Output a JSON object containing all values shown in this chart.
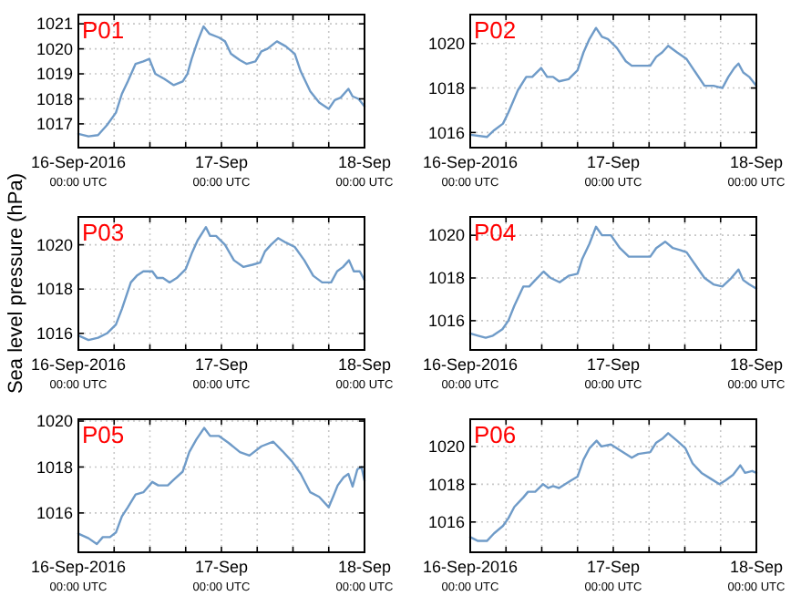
{
  "chart_data": [
    {
      "type": "line",
      "title": "P01",
      "xlim": [
        "2016-09-16T00:00",
        "2016-09-18T00:00"
      ],
      "ylim": [
        1016.05,
        1021.37
      ],
      "yticks": [
        1017,
        1018,
        1019,
        1020,
        1021
      ],
      "grid": true,
      "xticks": [
        {
          "value": "2016-09-16T00:00",
          "label": "16-Sep-2016\n00:00 UTC"
        },
        {
          "value": "2016-09-16T06:00",
          "label": null
        },
        {
          "value": "2016-09-16T12:00",
          "label": null
        },
        {
          "value": "2016-09-16T18:00",
          "label": null
        },
        {
          "value": "2016-09-17T00:00",
          "label": "17-Sep\n00:00 UTC"
        },
        {
          "value": "2016-09-17T06:00",
          "label": null
        },
        {
          "value": "2016-09-17T12:00",
          "label": null
        },
        {
          "value": "2016-09-17T18:00",
          "label": null
        },
        {
          "value": "2016-09-18T00:00",
          "label": "18-Sep\n00:00 UTC"
        }
      ],
      "series": [
        {
          "color": "#6f9bc8",
          "x": [
            "2016-09-16T00:00",
            "2016-09-16T01:42",
            "2016-09-16T03:18",
            "2016-09-16T04:48",
            "2016-09-16T06:18",
            "2016-09-16T07:18",
            "2016-09-16T08:18",
            "2016-09-16T09:36",
            "2016-09-16T10:54",
            "2016-09-16T11:54",
            "2016-09-16T12:54",
            "2016-09-16T14:24",
            "2016-09-16T16:00",
            "2016-09-16T17:30",
            "2016-09-16T18:18",
            "2016-09-16T19:00",
            "2016-09-16T20:00",
            "2016-09-16T21:00",
            "2016-09-16T22:00",
            "2016-09-16T23:36",
            "2016-09-17T00:36",
            "2016-09-17T01:36",
            "2016-09-17T03:06",
            "2016-09-17T04:12",
            "2016-09-17T05:42",
            "2016-09-17T06:42",
            "2016-09-17T07:42",
            "2016-09-17T09:18",
            "2016-09-17T10:48",
            "2016-09-17T12:18",
            "2016-09-17T13:18",
            "2016-09-17T14:54",
            "2016-09-17T16:24",
            "2016-09-17T18:00",
            "2016-09-17T19:00",
            "2016-09-17T20:00",
            "2016-09-17T21:18",
            "2016-09-17T22:00",
            "2016-09-17T23:00",
            "2016-09-18T00:00"
          ],
          "values": [
            1016.6,
            1016.5,
            1016.55,
            1016.95,
            1017.45,
            1018.2,
            1018.7,
            1019.4,
            1019.5,
            1019.6,
            1019,
            1018.8,
            1018.55,
            1018.7,
            1019,
            1019.6,
            1020.3,
            1020.9,
            1020.6,
            1020.45,
            1020.3,
            1019.8,
            1019.55,
            1019.4,
            1019.5,
            1019.9,
            1020,
            1020.3,
            1020.1,
            1019.8,
            1019.1,
            1018.3,
            1017.85,
            1017.6,
            1017.95,
            1018.05,
            1018.4,
            1018.1,
            1018,
            1017.7
          ]
        }
      ]
    },
    {
      "type": "line",
      "title": "P02",
      "xlim": [
        "2016-09-16T00:00",
        "2016-09-18T00:00"
      ],
      "ylim": [
        1015.32,
        1021.3
      ],
      "yticks": [
        1016,
        1018,
        1020
      ],
      "grid": true,
      "xticks": [
        {
          "value": "2016-09-16T00:00",
          "label": "16-Sep-2016\n00:00 UTC"
        },
        {
          "value": "2016-09-16T06:00",
          "label": null
        },
        {
          "value": "2016-09-16T12:00",
          "label": null
        },
        {
          "value": "2016-09-16T18:00",
          "label": null
        },
        {
          "value": "2016-09-17T00:00",
          "label": "17-Sep\n00:00 UTC"
        },
        {
          "value": "2016-09-17T06:00",
          "label": null
        },
        {
          "value": "2016-09-17T12:00",
          "label": null
        },
        {
          "value": "2016-09-17T18:00",
          "label": null
        },
        {
          "value": "2016-09-18T00:00",
          "label": "18-Sep\n00:00 UTC"
        }
      ],
      "series": [
        {
          "color": "#6f9bc8",
          "x": [
            "2016-09-16T00:00",
            "2016-09-16T02:48",
            "2016-09-16T04:00",
            "2016-09-16T05:30",
            "2016-09-16T06:24",
            "2016-09-16T08:00",
            "2016-09-16T09:24",
            "2016-09-16T10:24",
            "2016-09-16T11:54",
            "2016-09-16T12:54",
            "2016-09-16T13:54",
            "2016-09-16T14:54",
            "2016-09-16T16:30",
            "2016-09-16T18:00",
            "2016-09-16T19:00",
            "2016-09-16T20:00",
            "2016-09-16T21:06",
            "2016-09-16T22:06",
            "2016-09-16T23:06",
            "2016-09-17T00:36",
            "2016-09-17T02:06",
            "2016-09-17T03:06",
            "2016-09-17T04:36",
            "2016-09-17T06:12",
            "2016-09-17T07:12",
            "2016-09-17T08:12",
            "2016-09-17T09:12",
            "2016-09-17T10:42",
            "2016-09-17T12:18",
            "2016-09-17T13:48",
            "2016-09-17T15:18",
            "2016-09-17T16:48",
            "2016-09-17T18:18",
            "2016-09-17T19:18",
            "2016-09-17T20:18",
            "2016-09-17T21:00",
            "2016-09-17T21:48",
            "2016-09-17T22:48",
            "2016-09-18T00:00"
          ],
          "values": [
            1015.9,
            1015.8,
            1016.1,
            1016.4,
            1016.9,
            1017.9,
            1018.5,
            1018.5,
            1018.9,
            1018.5,
            1018.5,
            1018.3,
            1018.4,
            1018.8,
            1019.6,
            1020.2,
            1020.7,
            1020.3,
            1020.2,
            1019.8,
            1019.2,
            1019,
            1019,
            1019,
            1019.4,
            1019.6,
            1019.9,
            1019.6,
            1019.3,
            1018.7,
            1018.1,
            1018.1,
            1018,
            1018.5,
            1018.9,
            1019.1,
            1018.7,
            1018.5,
            1018.1
          ]
        }
      ]
    },
    {
      "type": "line",
      "title": "P03",
      "ylabel": "Sea level pressure (hPa)",
      "xlim": [
        "2016-09-16T00:00",
        "2016-09-18T00:00"
      ],
      "ylim": [
        1015.25,
        1021.26
      ],
      "yticks": [
        1016,
        1018,
        1020
      ],
      "grid": true,
      "xticks": [
        {
          "value": "2016-09-16T00:00",
          "label": "16-Sep-2016\n00:00 UTC"
        },
        {
          "value": "2016-09-16T06:00",
          "label": null
        },
        {
          "value": "2016-09-16T12:00",
          "label": null
        },
        {
          "value": "2016-09-16T18:00",
          "label": null
        },
        {
          "value": "2016-09-17T00:00",
          "label": "17-Sep\n00:00 UTC"
        },
        {
          "value": "2016-09-17T06:00",
          "label": null
        },
        {
          "value": "2016-09-17T12:00",
          "label": null
        },
        {
          "value": "2016-09-17T18:00",
          "label": null
        },
        {
          "value": "2016-09-18T00:00",
          "label": "18-Sep\n00:00 UTC"
        }
      ],
      "series": [
        {
          "color": "#6f9bc8",
          "x": [
            "2016-09-16T00:00",
            "2016-09-16T01:42",
            "2016-09-16T03:18",
            "2016-09-16T04:48",
            "2016-09-16T06:18",
            "2016-09-16T07:18",
            "2016-09-16T08:48",
            "2016-09-16T09:48",
            "2016-09-16T10:54",
            "2016-09-16T12:24",
            "2016-09-16T13:12",
            "2016-09-16T14:12",
            "2016-09-16T15:18",
            "2016-09-16T16:30",
            "2016-09-16T18:00",
            "2016-09-16T19:00",
            "2016-09-16T20:00",
            "2016-09-16T21:24",
            "2016-09-16T22:06",
            "2016-09-16T23:06",
            "2016-09-17T00:36",
            "2016-09-17T02:06",
            "2016-09-17T03:42",
            "2016-09-17T05:12",
            "2016-09-17T06:30",
            "2016-09-17T07:18",
            "2016-09-17T08:18",
            "2016-09-17T09:30",
            "2016-09-17T10:48",
            "2016-09-17T12:18",
            "2016-09-17T13:54",
            "2016-09-17T15:24",
            "2016-09-17T16:54",
            "2016-09-17T18:24",
            "2016-09-17T19:24",
            "2016-09-17T20:24",
            "2016-09-17T21:24",
            "2016-09-17T22:12",
            "2016-09-17T23:12",
            "2016-09-18T00:00"
          ],
          "values": [
            1015.9,
            1015.7,
            1015.8,
            1016,
            1016.4,
            1017.1,
            1018.3,
            1018.6,
            1018.8,
            1018.8,
            1018.5,
            1018.5,
            1018.3,
            1018.5,
            1018.9,
            1019.6,
            1020.2,
            1020.8,
            1020.4,
            1020.4,
            1020,
            1019.3,
            1019,
            1019.1,
            1019.2,
            1019.7,
            1020,
            1020.3,
            1020.1,
            1019.9,
            1019.3,
            1018.6,
            1018.3,
            1018.3,
            1018.8,
            1019,
            1019.3,
            1018.8,
            1018.8,
            1018.4
          ]
        }
      ]
    },
    {
      "type": "line",
      "title": "P04",
      "xlim": [
        "2016-09-16T00:00",
        "2016-09-18T00:00"
      ],
      "ylim": [
        1014.63,
        1020.86
      ],
      "yticks": [
        1016,
        1018,
        1020
      ],
      "grid": true,
      "xticks": [
        {
          "value": "2016-09-16T00:00",
          "label": "16-Sep-2016\n00:00 UTC"
        },
        {
          "value": "2016-09-16T06:00",
          "label": null
        },
        {
          "value": "2016-09-16T12:00",
          "label": null
        },
        {
          "value": "2016-09-16T18:00",
          "label": null
        },
        {
          "value": "2016-09-17T00:00",
          "label": "17-Sep\n00:00 UTC"
        },
        {
          "value": "2016-09-17T06:00",
          "label": null
        },
        {
          "value": "2016-09-17T12:00",
          "label": null
        },
        {
          "value": "2016-09-17T18:00",
          "label": null
        },
        {
          "value": "2016-09-18T00:00",
          "label": "18-Sep\n00:00 UTC"
        }
      ],
      "series": [
        {
          "color": "#6f9bc8",
          "x": [
            "2016-09-16T00:00",
            "2016-09-16T01:18",
            "2016-09-16T02:36",
            "2016-09-16T03:48",
            "2016-09-16T05:24",
            "2016-09-16T06:24",
            "2016-09-16T07:24",
            "2016-09-16T08:54",
            "2016-09-16T09:54",
            "2016-09-16T10:54",
            "2016-09-16T12:18",
            "2016-09-16T13:30",
            "2016-09-16T15:00",
            "2016-09-16T16:30",
            "2016-09-16T18:00",
            "2016-09-16T18:48",
            "2016-09-16T20:00",
            "2016-09-16T21:06",
            "2016-09-16T22:06",
            "2016-09-16T23:36",
            "2016-09-17T01:06",
            "2016-09-17T02:36",
            "2016-09-17T04:12",
            "2016-09-17T06:12",
            "2016-09-17T07:12",
            "2016-09-17T08:42",
            "2016-09-17T10:00",
            "2016-09-17T11:18",
            "2016-09-17T12:18",
            "2016-09-17T13:48",
            "2016-09-17T15:18",
            "2016-09-17T16:48",
            "2016-09-17T18:18",
            "2016-09-17T19:48",
            "2016-09-17T21:00",
            "2016-09-17T21:48",
            "2016-09-17T22:48",
            "2016-09-18T00:00"
          ],
          "values": [
            1015.4,
            1015.3,
            1015.2,
            1015.3,
            1015.6,
            1016,
            1016.7,
            1017.6,
            1017.6,
            1017.9,
            1018.3,
            1018,
            1017.8,
            1018.1,
            1018.2,
            1018.9,
            1019.6,
            1020.4,
            1020,
            1020,
            1019.4,
            1019,
            1019,
            1019,
            1019.4,
            1019.7,
            1019.4,
            1019.3,
            1019.2,
            1018.6,
            1018,
            1017.7,
            1017.6,
            1018,
            1018.4,
            1017.9,
            1017.7,
            1017.5
          ]
        }
      ]
    },
    {
      "type": "line",
      "title": "P05",
      "xlim": [
        "2016-09-16T00:00",
        "2016-09-18T00:00"
      ],
      "ylim": [
        1014.29,
        1020.08
      ],
      "yticks": [
        1016,
        1018,
        1020
      ],
      "grid": true,
      "xticks": [
        {
          "value": "2016-09-16T00:00",
          "label": "16-Sep-2016\n00:00 UTC"
        },
        {
          "value": "2016-09-16T06:00",
          "label": null
        },
        {
          "value": "2016-09-16T12:00",
          "label": null
        },
        {
          "value": "2016-09-16T18:00",
          "label": null
        },
        {
          "value": "2016-09-17T00:00",
          "label": "17-Sep\n00:00 UTC"
        },
        {
          "value": "2016-09-17T06:00",
          "label": null
        },
        {
          "value": "2016-09-17T12:00",
          "label": null
        },
        {
          "value": "2016-09-17T18:00",
          "label": null
        },
        {
          "value": "2016-09-18T00:00",
          "label": "18-Sep\n00:00 UTC"
        }
      ],
      "series": [
        {
          "color": "#6f9bc8",
          "x": [
            "2016-09-16T00:00",
            "2016-09-16T01:42",
            "2016-09-16T03:06",
            "2016-09-16T04:06",
            "2016-09-16T05:18",
            "2016-09-16T06:18",
            "2016-09-16T07:18",
            "2016-09-16T08:18",
            "2016-09-16T09:36",
            "2016-09-16T10:54",
            "2016-09-16T12:24",
            "2016-09-16T13:24",
            "2016-09-16T15:00",
            "2016-09-16T16:00",
            "2016-09-16T17:30",
            "2016-09-16T18:36",
            "2016-09-16T19:48",
            "2016-09-16T21:06",
            "2016-09-16T22:06",
            "2016-09-16T23:36",
            "2016-09-17T01:12",
            "2016-09-17T03:06",
            "2016-09-17T04:42",
            "2016-09-17T06:42",
            "2016-09-17T08:42",
            "2016-09-17T10:12",
            "2016-09-17T11:48",
            "2016-09-17T13:18",
            "2016-09-17T14:54",
            "2016-09-17T16:24",
            "2016-09-17T18:00",
            "2016-09-17T18:48",
            "2016-09-17T19:30",
            "2016-09-17T20:30",
            "2016-09-17T21:18",
            "2016-09-17T22:00",
            "2016-09-17T22:48",
            "2016-09-17T23:30",
            "2016-09-18T00:00"
          ],
          "values": [
            1015.1,
            1014.9,
            1014.65,
            1014.95,
            1014.95,
            1015.15,
            1015.85,
            1016.25,
            1016.8,
            1016.9,
            1017.35,
            1017.2,
            1017.2,
            1017.45,
            1017.8,
            1018.65,
            1019.2,
            1019.7,
            1019.35,
            1019.35,
            1019.05,
            1018.65,
            1018.5,
            1018.9,
            1019.1,
            1018.7,
            1018.25,
            1017.7,
            1016.9,
            1016.7,
            1016.25,
            1016.75,
            1017.2,
            1017.55,
            1017.7,
            1017.15,
            1017.9,
            1018,
            1017.4
          ]
        }
      ]
    },
    {
      "type": "line",
      "title": "P06",
      "xlim": [
        "2016-09-16T00:00",
        "2016-09-18T00:00"
      ],
      "ylim": [
        1014.4,
        1021.44
      ],
      "yticks": [
        1016,
        1018,
        1020
      ],
      "grid": true,
      "xticks": [
        {
          "value": "2016-09-16T00:00",
          "label": "16-Sep-2016\n00:00 UTC"
        },
        {
          "value": "2016-09-16T06:00",
          "label": null
        },
        {
          "value": "2016-09-16T12:00",
          "label": null
        },
        {
          "value": "2016-09-16T18:00",
          "label": null
        },
        {
          "value": "2016-09-17T00:00",
          "label": "17-Sep\n00:00 UTC"
        },
        {
          "value": "2016-09-17T06:00",
          "label": null
        },
        {
          "value": "2016-09-17T12:00",
          "label": null
        },
        {
          "value": "2016-09-17T18:00",
          "label": null
        },
        {
          "value": "2016-09-18T00:00",
          "label": "18-Sep\n00:00 UTC"
        }
      ],
      "series": [
        {
          "color": "#6f9bc8",
          "x": [
            "2016-09-16T00:00",
            "2016-09-16T01:18",
            "2016-09-16T02:48",
            "2016-09-16T04:00",
            "2016-09-16T05:30",
            "2016-09-16T06:24",
            "2016-09-16T07:24",
            "2016-09-16T08:54",
            "2016-09-16T09:42",
            "2016-09-16T10:54",
            "2016-09-16T12:12",
            "2016-09-16T13:06",
            "2016-09-16T13:54",
            "2016-09-16T14:54",
            "2016-09-16T16:54",
            "2016-09-16T18:00",
            "2016-09-16T19:00",
            "2016-09-16T20:00",
            "2016-09-16T21:12",
            "2016-09-16T22:00",
            "2016-09-16T23:36",
            "2016-09-17T01:06",
            "2016-09-17T03:06",
            "2016-09-17T04:12",
            "2016-09-17T06:12",
            "2016-09-17T07:12",
            "2016-09-17T08:12",
            "2016-09-17T09:12",
            "2016-09-17T10:42",
            "2016-09-17T12:06",
            "2016-09-17T13:18",
            "2016-09-17T14:48",
            "2016-09-17T16:18",
            "2016-09-17T17:48",
            "2016-09-17T18:48",
            "2016-09-17T20:06",
            "2016-09-17T21:18",
            "2016-09-17T22:06",
            "2016-09-17T23:18",
            "2016-09-18T00:00"
          ],
          "values": [
            1015.2,
            1015,
            1015,
            1015.4,
            1015.8,
            1016.2,
            1016.8,
            1017.3,
            1017.6,
            1017.6,
            1018,
            1017.8,
            1017.9,
            1017.8,
            1018.2,
            1018.4,
            1019.3,
            1019.9,
            1020.3,
            1020,
            1020.1,
            1019.8,
            1019.4,
            1019.6,
            1019.7,
            1020.2,
            1020.4,
            1020.7,
            1020.3,
            1019.9,
            1019.1,
            1018.6,
            1018.3,
            1018,
            1018.2,
            1018.5,
            1019,
            1018.6,
            1018.7,
            1018.6
          ]
        }
      ]
    }
  ]
}
